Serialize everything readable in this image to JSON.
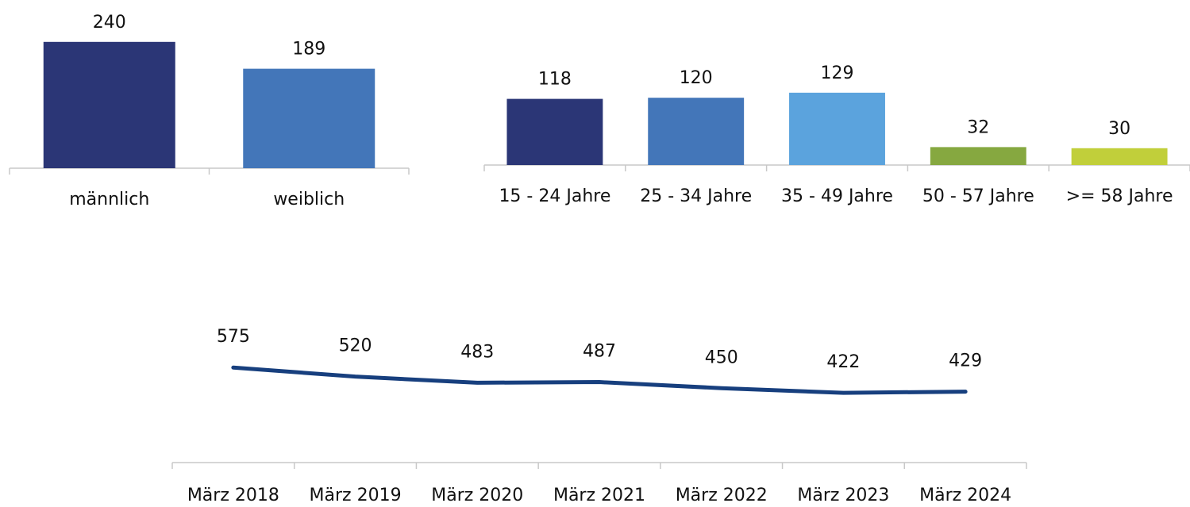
{
  "chart_data": [
    {
      "type": "bar",
      "categories": [
        "männlich",
        "weiblich"
      ],
      "values": [
        240,
        189
      ],
      "colors": [
        "#2b3676",
        "#4376b9"
      ],
      "ylim": [
        0,
        300
      ]
    },
    {
      "type": "bar",
      "categories": [
        "15 - 24 Jahre",
        "25 - 34 Jahre",
        "35 - 49 Jahre",
        "50 - 57 Jahre",
        ">= 58 Jahre"
      ],
      "values": [
        118,
        120,
        129,
        32,
        30
      ],
      "colors": [
        "#2b3676",
        "#4376b9",
        "#5ba3dd",
        "#86a840",
        "#c1cf3a"
      ],
      "ylim": [
        0,
        150
      ]
    },
    {
      "type": "line",
      "categories": [
        "März 2018",
        "März 2019",
        "März 2020",
        "März 2021",
        "März 2022",
        "März 2023",
        "März 2024"
      ],
      "values": [
        575,
        520,
        483,
        487,
        450,
        422,
        429
      ],
      "color": "#173f7e",
      "ylim": [
        0,
        1200
      ]
    }
  ]
}
